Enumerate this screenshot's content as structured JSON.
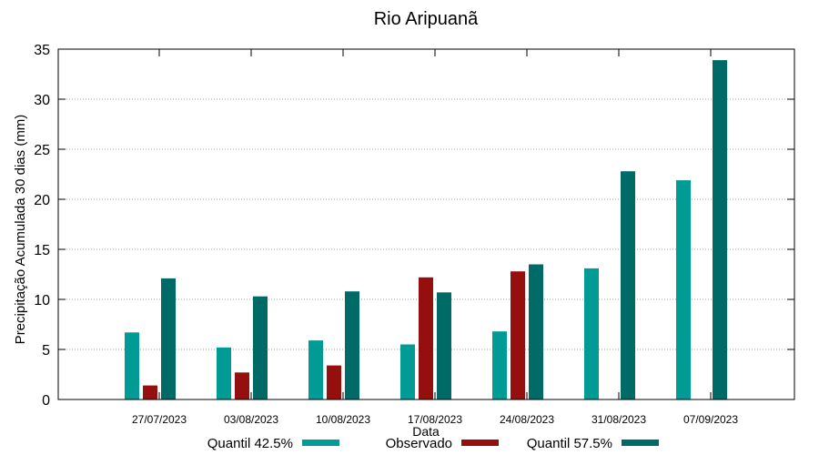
{
  "chart_data": {
    "type": "bar",
    "title": "Rio Aripuanã",
    "xlabel": "Data",
    "ylabel": "Precipitação Acumulada 30 dias (mm)",
    "ylim": [
      0,
      35
    ],
    "yticks": [
      "0",
      "5",
      "10",
      "15",
      "20",
      "25",
      "30",
      "35"
    ],
    "grid": true,
    "legend_position": "bottom",
    "categories": [
      "27/07/2023",
      "03/08/2023",
      "10/08/2023",
      "17/08/2023",
      "24/08/2023",
      "31/08/2023",
      "07/09/2023"
    ],
    "series": [
      {
        "name": "Quantil 42.5%",
        "color": "#009b95",
        "values": [
          6.7,
          5.2,
          5.9,
          5.5,
          6.8,
          13.1,
          21.9
        ]
      },
      {
        "name": "Observado",
        "color": "#960f0f",
        "values": [
          1.4,
          2.7,
          3.4,
          12.2,
          12.8,
          null,
          null
        ]
      },
      {
        "name": "Quantil 57.5%",
        "color": "#006b66",
        "values": [
          12.1,
          10.3,
          10.8,
          10.7,
          13.5,
          22.8,
          33.9
        ]
      }
    ]
  }
}
